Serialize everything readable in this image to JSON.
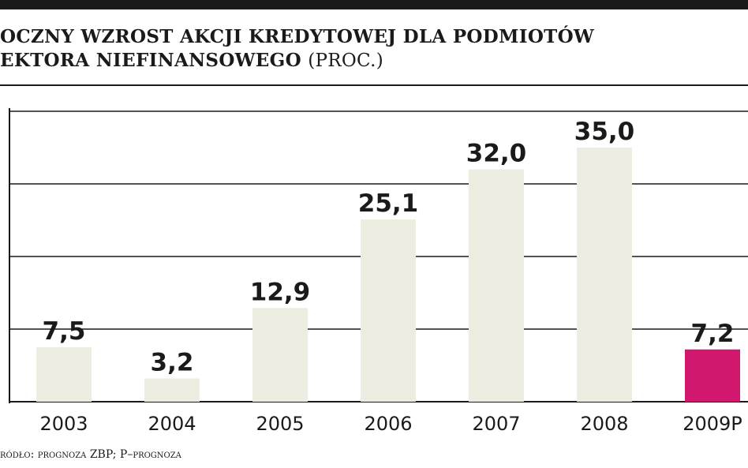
{
  "header": {
    "title_line1": "OCZNY WZROST AKCJI KREDYTOWEJ DLA PODMIOTÓW",
    "title_line2": "EKTORA NIEFINANSOWEGO",
    "title_unit": "(PROC.)"
  },
  "footer": {
    "source": "ródło: prognoza ZBP; P–prognoza"
  },
  "colors": {
    "bar": "#edece0",
    "highlight": "#d2186e",
    "text": "#1a1a1a",
    "grid": "#1a1a1a"
  },
  "chart_data": {
    "type": "bar",
    "categories": [
      "2003",
      "2004",
      "2005",
      "2006",
      "2007",
      "2008",
      "2009P"
    ],
    "values": [
      7.5,
      3.2,
      12.9,
      25.1,
      32.0,
      35.0,
      7.2
    ],
    "value_labels": [
      "7,5",
      "3,2",
      "12,9",
      "25,1",
      "32,0",
      "35,0",
      "7,2"
    ],
    "highlighted_category": "2009P",
    "ylim": [
      0,
      40
    ],
    "gridlines": [
      10,
      20,
      30,
      40
    ],
    "grid": true,
    "xlabel": "",
    "ylabel": ""
  }
}
